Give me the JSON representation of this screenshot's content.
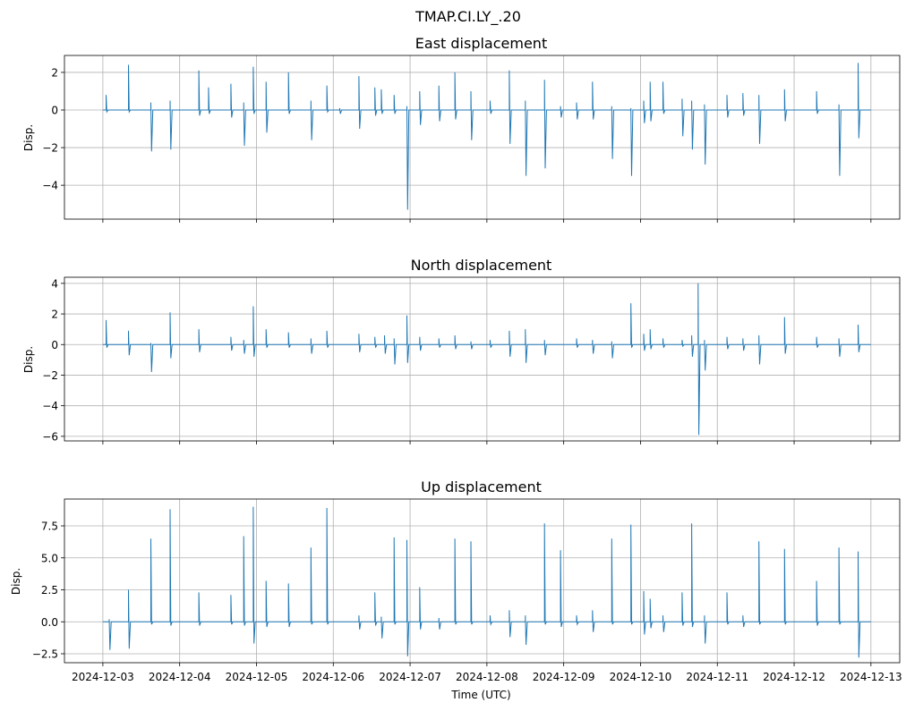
{
  "figure": {
    "title": "TMAP.CI.LY_.20"
  },
  "colors": {
    "series": "#1f77b4",
    "grid": "#b0b0b0",
    "axis": "#000000"
  },
  "chart_data": [
    {
      "type": "line",
      "title": "East displacement",
      "ylabel": "Disp.",
      "xlabel": "",
      "ylim": [
        -5.8,
        2.9
      ],
      "yticks": [
        -4,
        -2,
        0,
        2
      ],
      "ytick_labels": [
        "−4",
        "−2",
        "0",
        "2"
      ],
      "grid": true,
      "x_tick_labels_visible": false,
      "series": [
        {
          "spikes": [
            [
              "2024-12-03 01:00",
              0.8,
              -0.1
            ],
            [
              "2024-12-03 08:00",
              2.4,
              -0.1
            ],
            [
              "2024-12-03 15:00",
              0.4,
              -2.2
            ],
            [
              "2024-12-03 21:00",
              0.5,
              -2.1
            ],
            [
              "2024-12-04 06:00",
              2.1,
              -0.3
            ],
            [
              "2024-12-04 09:00",
              1.2,
              -0.2
            ],
            [
              "2024-12-04 16:00",
              1.4,
              -0.4
            ],
            [
              "2024-12-04 20:00",
              0.4,
              -1.9
            ],
            [
              "2024-12-04 23:00",
              2.3,
              -0.2
            ],
            [
              "2024-12-05 03:00",
              1.5,
              -1.2
            ],
            [
              "2024-12-05 10:00",
              2.0,
              -0.2
            ],
            [
              "2024-12-05 17:00",
              0.5,
              -1.6
            ],
            [
              "2024-12-05 22:00",
              1.3,
              -0.1
            ],
            [
              "2024-12-06 02:00",
              0.1,
              -0.2
            ],
            [
              "2024-12-06 08:00",
              1.8,
              -1.0
            ],
            [
              "2024-12-06 13:00",
              1.2,
              -0.3
            ],
            [
              "2024-12-06 15:00",
              1.1,
              -0.2
            ],
            [
              "2024-12-06 19:00",
              0.8,
              -0.2
            ],
            [
              "2024-12-06 23:00",
              0.2,
              -5.3
            ],
            [
              "2024-12-07 03:00",
              1.0,
              -0.8
            ],
            [
              "2024-12-07 09:00",
              1.3,
              -0.6
            ],
            [
              "2024-12-07 14:00",
              2.0,
              -0.5
            ],
            [
              "2024-12-07 19:00",
              1.0,
              -1.6
            ],
            [
              "2024-12-08 01:00",
              0.5,
              -0.2
            ],
            [
              "2024-12-08 07:00",
              2.1,
              -1.8
            ],
            [
              "2024-12-08 12:00",
              0.5,
              -3.5
            ],
            [
              "2024-12-08 18:00",
              1.6,
              -3.1
            ],
            [
              "2024-12-08 23:00",
              0.2,
              -0.4
            ],
            [
              "2024-12-09 04:00",
              0.4,
              -0.5
            ],
            [
              "2024-12-09 09:00",
              1.5,
              -0.5
            ],
            [
              "2024-12-09 15:00",
              0.2,
              -2.6
            ],
            [
              "2024-12-09 21:00",
              0.1,
              -3.5
            ],
            [
              "2024-12-10 01:00",
              0.5,
              -0.7
            ],
            [
              "2024-12-10 03:00",
              1.5,
              -0.6
            ],
            [
              "2024-12-10 07:00",
              1.5,
              -0.2
            ],
            [
              "2024-12-10 13:00",
              0.6,
              -1.4
            ],
            [
              "2024-12-10 16:00",
              0.5,
              -2.1
            ],
            [
              "2024-12-10 20:00",
              0.3,
              -2.9
            ],
            [
              "2024-12-11 03:00",
              0.8,
              -0.4
            ],
            [
              "2024-12-11 08:00",
              0.9,
              -0.3
            ],
            [
              "2024-12-11 13:00",
              0.8,
              -1.8
            ],
            [
              "2024-12-11 21:00",
              1.1,
              -0.6
            ],
            [
              "2024-12-12 07:00",
              1.0,
              -0.2
            ],
            [
              "2024-12-12 14:00",
              0.3,
              -3.5
            ],
            [
              "2024-12-12 20:00",
              2.5,
              -1.5
            ]
          ]
        }
      ]
    },
    {
      "type": "line",
      "title": "North displacement",
      "ylabel": "Disp.",
      "xlabel": "",
      "ylim": [
        -6.3,
        4.4
      ],
      "yticks": [
        -6,
        -4,
        -2,
        0,
        2,
        4
      ],
      "ytick_labels": [
        "−6",
        "−4",
        "−2",
        "0",
        "2",
        "4"
      ],
      "grid": true,
      "x_tick_labels_visible": false,
      "series": [
        {
          "spikes": [
            [
              "2024-12-03 01:00",
              1.6,
              -0.2
            ],
            [
              "2024-12-03 08:00",
              0.9,
              -0.7
            ],
            [
              "2024-12-03 15:00",
              0.1,
              -1.8
            ],
            [
              "2024-12-03 21:00",
              2.1,
              -0.9
            ],
            [
              "2024-12-04 06:00",
              1.0,
              -0.5
            ],
            [
              "2024-12-04 16:00",
              0.5,
              -0.4
            ],
            [
              "2024-12-04 20:00",
              0.3,
              -0.6
            ],
            [
              "2024-12-04 23:00",
              2.5,
              -0.8
            ],
            [
              "2024-12-05 03:00",
              1.0,
              -0.2
            ],
            [
              "2024-12-05 10:00",
              0.8,
              -0.2
            ],
            [
              "2024-12-05 17:00",
              0.4,
              -0.6
            ],
            [
              "2024-12-05 22:00",
              0.9,
              -0.2
            ],
            [
              "2024-12-06 08:00",
              0.7,
              -0.5
            ],
            [
              "2024-12-06 13:00",
              0.5,
              -0.2
            ],
            [
              "2024-12-06 16:00",
              0.6,
              -0.6
            ],
            [
              "2024-12-06 19:00",
              0.4,
              -1.3
            ],
            [
              "2024-12-06 23:00",
              1.9,
              -1.2
            ],
            [
              "2024-12-07 03:00",
              0.5,
              -0.4
            ],
            [
              "2024-12-07 09:00",
              0.4,
              -0.2
            ],
            [
              "2024-12-07 14:00",
              0.6,
              -0.3
            ],
            [
              "2024-12-07 19:00",
              0.2,
              -0.3
            ],
            [
              "2024-12-08 01:00",
              0.3,
              -0.2
            ],
            [
              "2024-12-08 07:00",
              0.9,
              -0.8
            ],
            [
              "2024-12-08 12:00",
              1.0,
              -1.2
            ],
            [
              "2024-12-08 18:00",
              0.3,
              -0.7
            ],
            [
              "2024-12-09 04:00",
              0.4,
              -0.2
            ],
            [
              "2024-12-09 09:00",
              0.3,
              -0.6
            ],
            [
              "2024-12-09 15:00",
              0.2,
              -0.9
            ],
            [
              "2024-12-09 21:00",
              2.7,
              -0.2
            ],
            [
              "2024-12-10 01:00",
              0.7,
              -0.4
            ],
            [
              "2024-12-10 03:00",
              1.0,
              -0.3
            ],
            [
              "2024-12-10 07:00",
              0.4,
              -0.2
            ],
            [
              "2024-12-10 13:00",
              0.3,
              -0.1
            ],
            [
              "2024-12-10 16:00",
              0.6,
              -0.8
            ],
            [
              "2024-12-10 18:00",
              4.0,
              -5.9
            ],
            [
              "2024-12-10 20:00",
              0.3,
              -1.7
            ],
            [
              "2024-12-11 03:00",
              0.5,
              -0.3
            ],
            [
              "2024-12-11 08:00",
              0.4,
              -0.4
            ],
            [
              "2024-12-11 13:00",
              0.6,
              -1.3
            ],
            [
              "2024-12-11 21:00",
              1.8,
              -0.6
            ],
            [
              "2024-12-12 07:00",
              0.5,
              -0.2
            ],
            [
              "2024-12-12 14:00",
              0.4,
              -0.8
            ],
            [
              "2024-12-12 20:00",
              1.3,
              -0.5
            ]
          ]
        }
      ]
    },
    {
      "type": "line",
      "title": "Up displacement",
      "ylabel": "Disp.",
      "xlabel": "Time (UTC)",
      "ylim": [
        -3.2,
        9.6
      ],
      "yticks": [
        -2.5,
        0,
        2.5,
        5,
        7.5
      ],
      "ytick_labels": [
        "−2.5",
        "0.0",
        "2.5",
        "5.0",
        "7.5"
      ],
      "grid": true,
      "x_tick_labels_visible": true,
      "xlim": [
        "2024-12-02 12:00",
        "2024-12-13 09:00"
      ],
      "xticks": [
        "2024-12-03",
        "2024-12-04",
        "2024-12-05",
        "2024-12-06",
        "2024-12-07",
        "2024-12-08",
        "2024-12-09",
        "2024-12-10",
        "2024-12-11",
        "2024-12-12",
        "2024-12-13"
      ],
      "series": [
        {
          "spikes": [
            [
              "2024-12-03 02:00",
              0.2,
              -2.2
            ],
            [
              "2024-12-03 08:00",
              2.5,
              -2.1
            ],
            [
              "2024-12-03 15:00",
              6.5,
              -0.2
            ],
            [
              "2024-12-03 21:00",
              8.8,
              -0.3
            ],
            [
              "2024-12-04 06:00",
              2.3,
              -0.3
            ],
            [
              "2024-12-04 16:00",
              2.1,
              -0.2
            ],
            [
              "2024-12-04 20:00",
              6.7,
              -0.3
            ],
            [
              "2024-12-04 23:00",
              9.0,
              -1.7
            ],
            [
              "2024-12-05 03:00",
              3.2,
              -0.4
            ],
            [
              "2024-12-05 10:00",
              3.0,
              -0.4
            ],
            [
              "2024-12-05 17:00",
              5.8,
              -0.2
            ],
            [
              "2024-12-05 22:00",
              8.9,
              -0.2
            ],
            [
              "2024-12-06 08:00",
              0.5,
              -0.6
            ],
            [
              "2024-12-06 13:00",
              2.3,
              -0.3
            ],
            [
              "2024-12-06 15:00",
              0.4,
              -1.3
            ],
            [
              "2024-12-06 19:00",
              6.6,
              -0.2
            ],
            [
              "2024-12-06 23:00",
              6.4,
              -2.7
            ],
            [
              "2024-12-07 03:00",
              2.7,
              -0.6
            ],
            [
              "2024-12-07 09:00",
              0.3,
              -0.6
            ],
            [
              "2024-12-07 14:00",
              6.5,
              -0.2
            ],
            [
              "2024-12-07 19:00",
              6.3,
              -0.2
            ],
            [
              "2024-12-08 01:00",
              0.5,
              -0.2
            ],
            [
              "2024-12-08 07:00",
              0.9,
              -1.2
            ],
            [
              "2024-12-08 12:00",
              0.5,
              -1.8
            ],
            [
              "2024-12-08 18:00",
              7.7,
              -0.2
            ],
            [
              "2024-12-08 23:00",
              5.6,
              -0.4
            ],
            [
              "2024-12-09 04:00",
              0.5,
              -0.2
            ],
            [
              "2024-12-09 09:00",
              0.9,
              -0.8
            ],
            [
              "2024-12-09 15:00",
              6.5,
              -0.2
            ],
            [
              "2024-12-09 21:00",
              7.6,
              -0.2
            ],
            [
              "2024-12-10 01:00",
              2.4,
              -1.0
            ],
            [
              "2024-12-10 03:00",
              1.8,
              -0.5
            ],
            [
              "2024-12-10 07:00",
              0.5,
              -0.8
            ],
            [
              "2024-12-10 13:00",
              2.3,
              -0.3
            ],
            [
              "2024-12-10 16:00",
              7.7,
              -0.4
            ],
            [
              "2024-12-10 20:00",
              0.5,
              -1.7
            ],
            [
              "2024-12-11 03:00",
              2.3,
              -0.2
            ],
            [
              "2024-12-11 08:00",
              0.5,
              -0.4
            ],
            [
              "2024-12-11 13:00",
              6.3,
              -0.2
            ],
            [
              "2024-12-11 21:00",
              5.7,
              -0.2
            ],
            [
              "2024-12-12 07:00",
              3.2,
              -0.3
            ],
            [
              "2024-12-12 14:00",
              5.8,
              -0.2
            ],
            [
              "2024-12-12 20:00",
              5.5,
              -2.8
            ]
          ]
        }
      ]
    }
  ]
}
